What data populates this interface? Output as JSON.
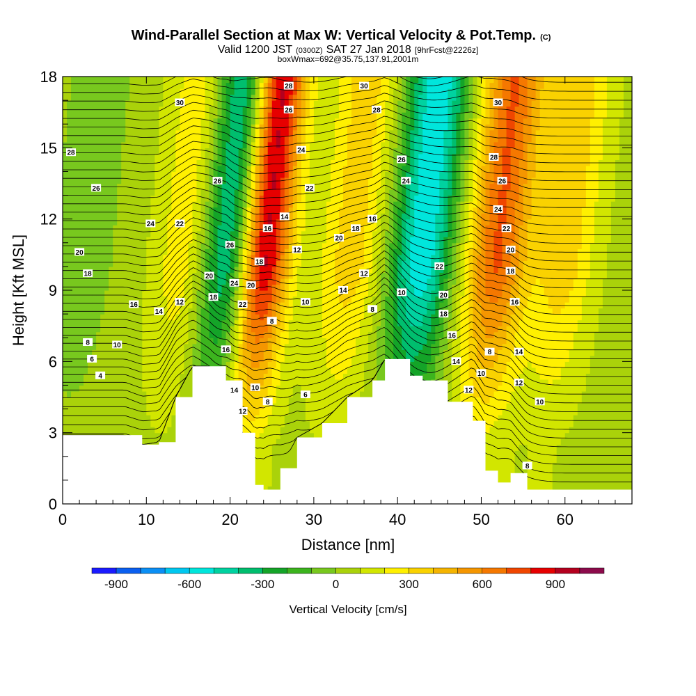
{
  "header": {
    "title_main": "Wind-Parallel Section at Max W: Vertical Velocity & Pot.Temp.",
    "title_mark": "(C)",
    "valid_prefix": "Valid 1200 JST",
    "valid_utc": "(0300Z)",
    "valid_date": "SAT 27 Jan 2018",
    "valid_fcst": "[9hrFcst@2226z]",
    "box_info": "boxWmax=692@35.75,137.91,2001m"
  },
  "chart_data": {
    "type": "heatmap",
    "title": "Wind-Parallel Section at Max W: Vertical Velocity & Pot.Temp.",
    "xlabel": "Distance [nm]",
    "ylabel": "Height [Kft MSL]",
    "xlim": [
      0,
      68
    ],
    "ylim": [
      0,
      18
    ],
    "xticks": [
      0,
      10,
      20,
      30,
      40,
      50,
      60
    ],
    "yticks": [
      0,
      3,
      6,
      9,
      12,
      15,
      18
    ],
    "fill_variable": "Vertical Velocity [cm/s]",
    "contour_variable": "Potential temperature",
    "colorbar": {
      "label": "Vertical Velocity [cm/s]",
      "ticks": [
        -900,
        -600,
        -300,
        0,
        300,
        600,
        900
      ],
      "levels": [
        -1000,
        -900,
        -800,
        -700,
        -600,
        -500,
        -400,
        -300,
        -200,
        -100,
        0,
        100,
        200,
        300,
        400,
        500,
        600,
        700,
        800,
        900,
        1000,
        1100
      ],
      "colors": [
        "#1a1aff",
        "#0a5ff0",
        "#0b8ff5",
        "#00c8f0",
        "#00e6dc",
        "#00d2a0",
        "#00be6e",
        "#14a428",
        "#3cb41e",
        "#78c81e",
        "#aad20a",
        "#d2e600",
        "#fff000",
        "#fad200",
        "#f5b400",
        "#f59600",
        "#f57800",
        "#f04600",
        "#e60000",
        "#b4001e",
        "#8c0a4b",
        "#5a0078"
      ]
    },
    "velocity_bands": [
      {
        "x_center": 23.5,
        "value": 1000
      },
      {
        "x_center": 51.5,
        "value": 650
      },
      {
        "x_center": 42.5,
        "value": -650
      },
      {
        "x_center": 19.5,
        "value": -600
      },
      {
        "x_center": 14.5,
        "value": 250
      },
      {
        "x_center": 34.0,
        "value": 300
      },
      {
        "x_center": 59.5,
        "value": 300
      },
      {
        "x_center": 2.0,
        "value": -150
      }
    ],
    "terrain": {
      "x": [
        0,
        7.5,
        9.5,
        11.5,
        13.5,
        15.5,
        17.5,
        19.5,
        21.5,
        23.0,
        24.0,
        26.0,
        28.0,
        31.0,
        34.0,
        37.0,
        38.5,
        41.5,
        43.0,
        46.0,
        49.0,
        50.5,
        52.0,
        53.5,
        55.5,
        57.5,
        61.0,
        63.5,
        68
      ],
      "height": [
        2.9,
        2.9,
        2.5,
        2.6,
        4.5,
        5.8,
        5.8,
        5.2,
        3.0,
        0.8,
        0.6,
        1.5,
        2.8,
        3.4,
        4.5,
        5.2,
        6.1,
        5.4,
        5.2,
        4.3,
        3.5,
        1.4,
        0.9,
        1.3,
        0.6,
        0.6,
        0.6,
        0.6,
        0.6
      ]
    },
    "contour_labels": [
      {
        "text": "30",
        "x": 14,
        "y": 16.9
      },
      {
        "text": "28",
        "x": 1,
        "y": 14.8
      },
      {
        "text": "26",
        "x": 4,
        "y": 13.3
      },
      {
        "text": "24",
        "x": 10.5,
        "y": 11.8
      },
      {
        "text": "22",
        "x": 14,
        "y": 11.8
      },
      {
        "text": "20",
        "x": 2,
        "y": 10.6
      },
      {
        "text": "18",
        "x": 3,
        "y": 9.7
      },
      {
        "text": "16",
        "x": 8.5,
        "y": 8.4
      },
      {
        "text": "14",
        "x": 11.5,
        "y": 8.1
      },
      {
        "text": "12",
        "x": 14,
        "y": 8.5
      },
      {
        "text": "10",
        "x": 6.5,
        "y": 6.7
      },
      {
        "text": "8",
        "x": 3,
        "y": 6.8
      },
      {
        "text": "6",
        "x": 3.5,
        "y": 6.1
      },
      {
        "text": "4",
        "x": 4.5,
        "y": 5.4
      },
      {
        "text": "26",
        "x": 18.5,
        "y": 13.6
      },
      {
        "text": "26",
        "x": 20,
        "y": 10.9
      },
      {
        "text": "20",
        "x": 17.5,
        "y": 9.6
      },
      {
        "text": "18",
        "x": 18,
        "y": 8.7
      },
      {
        "text": "16",
        "x": 19.5,
        "y": 6.5
      },
      {
        "text": "14",
        "x": 20.5,
        "y": 4.8
      },
      {
        "text": "12",
        "x": 21.5,
        "y": 3.9
      },
      {
        "text": "24",
        "x": 20.5,
        "y": 9.3
      },
      {
        "text": "22",
        "x": 21.5,
        "y": 8.4
      },
      {
        "text": "20",
        "x": 22.5,
        "y": 9.2
      },
      {
        "text": "18",
        "x": 23.5,
        "y": 10.2
      },
      {
        "text": "16",
        "x": 24.5,
        "y": 11.6
      },
      {
        "text": "10",
        "x": 23,
        "y": 4.9
      },
      {
        "text": "8",
        "x": 24.5,
        "y": 4.3
      },
      {
        "text": "8",
        "x": 25,
        "y": 7.7
      },
      {
        "text": "28",
        "x": 27,
        "y": 17.6
      },
      {
        "text": "26",
        "x": 27,
        "y": 16.6
      },
      {
        "text": "24",
        "x": 28.5,
        "y": 14.9
      },
      {
        "text": "22",
        "x": 29.5,
        "y": 13.3
      },
      {
        "text": "14",
        "x": 26.5,
        "y": 12.1
      },
      {
        "text": "12",
        "x": 28,
        "y": 10.7
      },
      {
        "text": "10",
        "x": 29,
        "y": 8.5
      },
      {
        "text": "6",
        "x": 29,
        "y": 4.6
      },
      {
        "text": "30",
        "x": 36,
        "y": 17.6
      },
      {
        "text": "28",
        "x": 37.5,
        "y": 16.6
      },
      {
        "text": "20",
        "x": 33,
        "y": 11.2
      },
      {
        "text": "18",
        "x": 35,
        "y": 11.6
      },
      {
        "text": "16",
        "x": 37,
        "y": 12.0
      },
      {
        "text": "14",
        "x": 33.5,
        "y": 9.0
      },
      {
        "text": "12",
        "x": 36,
        "y": 9.7
      },
      {
        "text": "8",
        "x": 37,
        "y": 8.2
      },
      {
        "text": "10",
        "x": 40.5,
        "y": 8.9
      },
      {
        "text": "26",
        "x": 40.5,
        "y": 14.5
      },
      {
        "text": "24",
        "x": 41,
        "y": 13.6
      },
      {
        "text": "22",
        "x": 45,
        "y": 10.0
      },
      {
        "text": "20",
        "x": 45.5,
        "y": 8.8
      },
      {
        "text": "18",
        "x": 45.5,
        "y": 8.0
      },
      {
        "text": "16",
        "x": 46.5,
        "y": 7.1
      },
      {
        "text": "14",
        "x": 47,
        "y": 6.0
      },
      {
        "text": "12",
        "x": 48.5,
        "y": 4.8
      },
      {
        "text": "10",
        "x": 50,
        "y": 5.5
      },
      {
        "text": "8",
        "x": 51,
        "y": 6.4
      },
      {
        "text": "30",
        "x": 52,
        "y": 16.9
      },
      {
        "text": "28",
        "x": 51.5,
        "y": 14.6
      },
      {
        "text": "26",
        "x": 52.5,
        "y": 13.6
      },
      {
        "text": "24",
        "x": 52,
        "y": 12.4
      },
      {
        "text": "22",
        "x": 53,
        "y": 11.6
      },
      {
        "text": "20",
        "x": 53.5,
        "y": 10.7
      },
      {
        "text": "18",
        "x": 53.5,
        "y": 9.8
      },
      {
        "text": "16",
        "x": 54,
        "y": 8.5
      },
      {
        "text": "14",
        "x": 54.5,
        "y": 6.4
      },
      {
        "text": "12",
        "x": 54.5,
        "y": 5.1
      },
      {
        "text": "10",
        "x": 57,
        "y": 4.3
      },
      {
        "text": "8",
        "x": 55.5,
        "y": 1.6
      }
    ]
  }
}
